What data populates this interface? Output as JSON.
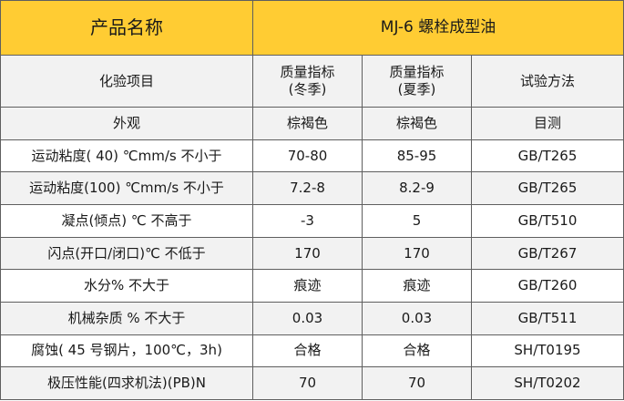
{
  "title": {
    "label": "产品名称",
    "value": "MJ-6 螺栓成型油"
  },
  "header": {
    "item": "化验项目",
    "winter_line1": "质量指标",
    "winter_line2": "(冬季)",
    "summer_line1": "质量指标",
    "summer_line2": "(夏季)",
    "method": "试验方法"
  },
  "rows": [
    {
      "item": "外观",
      "winter": "棕褐色",
      "summer": "棕褐色",
      "method": "目测"
    },
    {
      "item": "运动粘度( 40) ℃mm/s 不小于",
      "winter": "70-80",
      "summer": "85-95",
      "method": "GB/T265"
    },
    {
      "item": "运动粘度(100) ℃mm/s 不小于",
      "winter": "7.2-8",
      "summer": "8.2-9",
      "method": "GB/T265"
    },
    {
      "item": "凝点(倾点) ℃   不高于",
      "winter": "-3",
      "summer": "5",
      "method": "GB/T510"
    },
    {
      "item": "闪点(开口/闭口)℃ 不低于",
      "winter": "170",
      "summer": "170",
      "method": "GB/T267"
    },
    {
      "item": "水分%  不大于",
      "winter": "痕迹",
      "summer": "痕迹",
      "method": "GB/T260"
    },
    {
      "item": "机械杂质  %    不大于",
      "winter": "0.03",
      "summer": "0.03",
      "method": "GB/T511"
    },
    {
      "item": "腐蚀( 45 号钢片，100℃，3h)",
      "winter": "合格",
      "summer": "合格",
      "method": "SH/T0195"
    },
    {
      "item": "极压性能(四求机法)(PB)N",
      "winter": "70",
      "summer": "70",
      "method": "SH/T0202"
    }
  ],
  "colors": {
    "title_background": "#ffcc33",
    "shaded_row": "#f2f2f2",
    "border": "#5f5f5f"
  }
}
